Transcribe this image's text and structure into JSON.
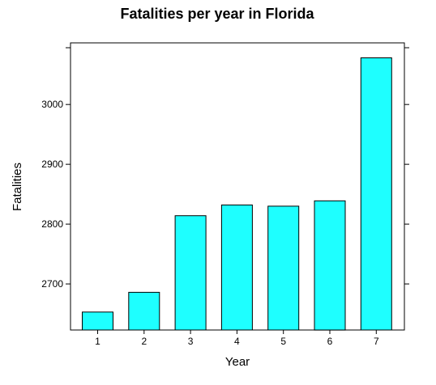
{
  "chart_data": {
    "type": "bar",
    "title": "Fatalities per year in Florida",
    "xlabel": "Year",
    "ylabel": "Fatalities",
    "categories": [
      "1",
      "2",
      "3",
      "4",
      "5",
      "6",
      "7"
    ],
    "values": [
      2653,
      2686,
      2814,
      2832,
      2830,
      2839,
      3078
    ],
    "ylim": [
      2623,
      3103
    ],
    "yticks": [
      "2700",
      "2800",
      "2900",
      "3000"
    ],
    "ytick_values": [
      2700,
      2800,
      2900,
      3000
    ],
    "grid": false,
    "bar_color": "#1effff",
    "bar_edge_color": "#000000"
  }
}
